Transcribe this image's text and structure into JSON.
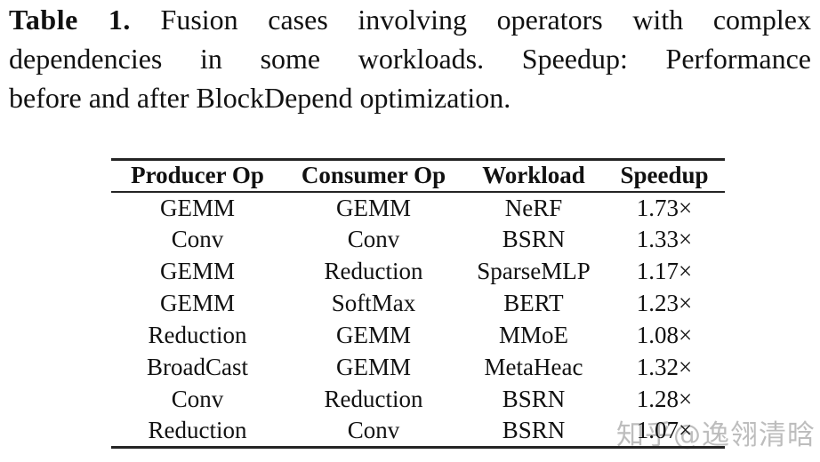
{
  "caption": {
    "label": "Table 1.",
    "line1_rest": "Fusion cases involving operators with complex",
    "line2": "dependencies in some workloads. Speedup: Performance",
    "line3": "before and after BlockDepend optimization.",
    "full_text": "Table 1. Fusion cases involving operators with complex dependencies in some workloads. Speedup: Performance before and after BlockDepend optimization."
  },
  "chart_data": {
    "type": "table",
    "title": "Fusion cases involving operators with complex dependencies in some workloads",
    "headers": [
      "Producer Op",
      "Consumer Op",
      "Workload",
      "Speedup"
    ],
    "rows": [
      [
        "GEMM",
        "GEMM",
        "NeRF",
        "1.73×"
      ],
      [
        "Conv",
        "Conv",
        "BSRN",
        "1.33×"
      ],
      [
        "GEMM",
        "Reduction",
        "SparseMLP",
        "1.17×"
      ],
      [
        "GEMM",
        "SoftMax",
        "BERT",
        "1.23×"
      ],
      [
        "Reduction",
        "GEMM",
        "MMoE",
        "1.08×"
      ],
      [
        "BroadCast",
        "GEMM",
        "MetaHeac",
        "1.32×"
      ],
      [
        "Conv",
        "Reduction",
        "BSRN",
        "1.28×"
      ],
      [
        "Reduction",
        "Conv",
        "BSRN",
        "1.07×"
      ]
    ],
    "speedup_values": [
      1.73,
      1.33,
      1.17,
      1.23,
      1.08,
      1.32,
      1.28,
      1.07
    ]
  },
  "watermark": {
    "text": "知乎@逸翎清晗",
    "color": "#bdbdbd"
  },
  "colors": {
    "background": "#ffffff",
    "text": "#111111",
    "rule": "#242424"
  }
}
